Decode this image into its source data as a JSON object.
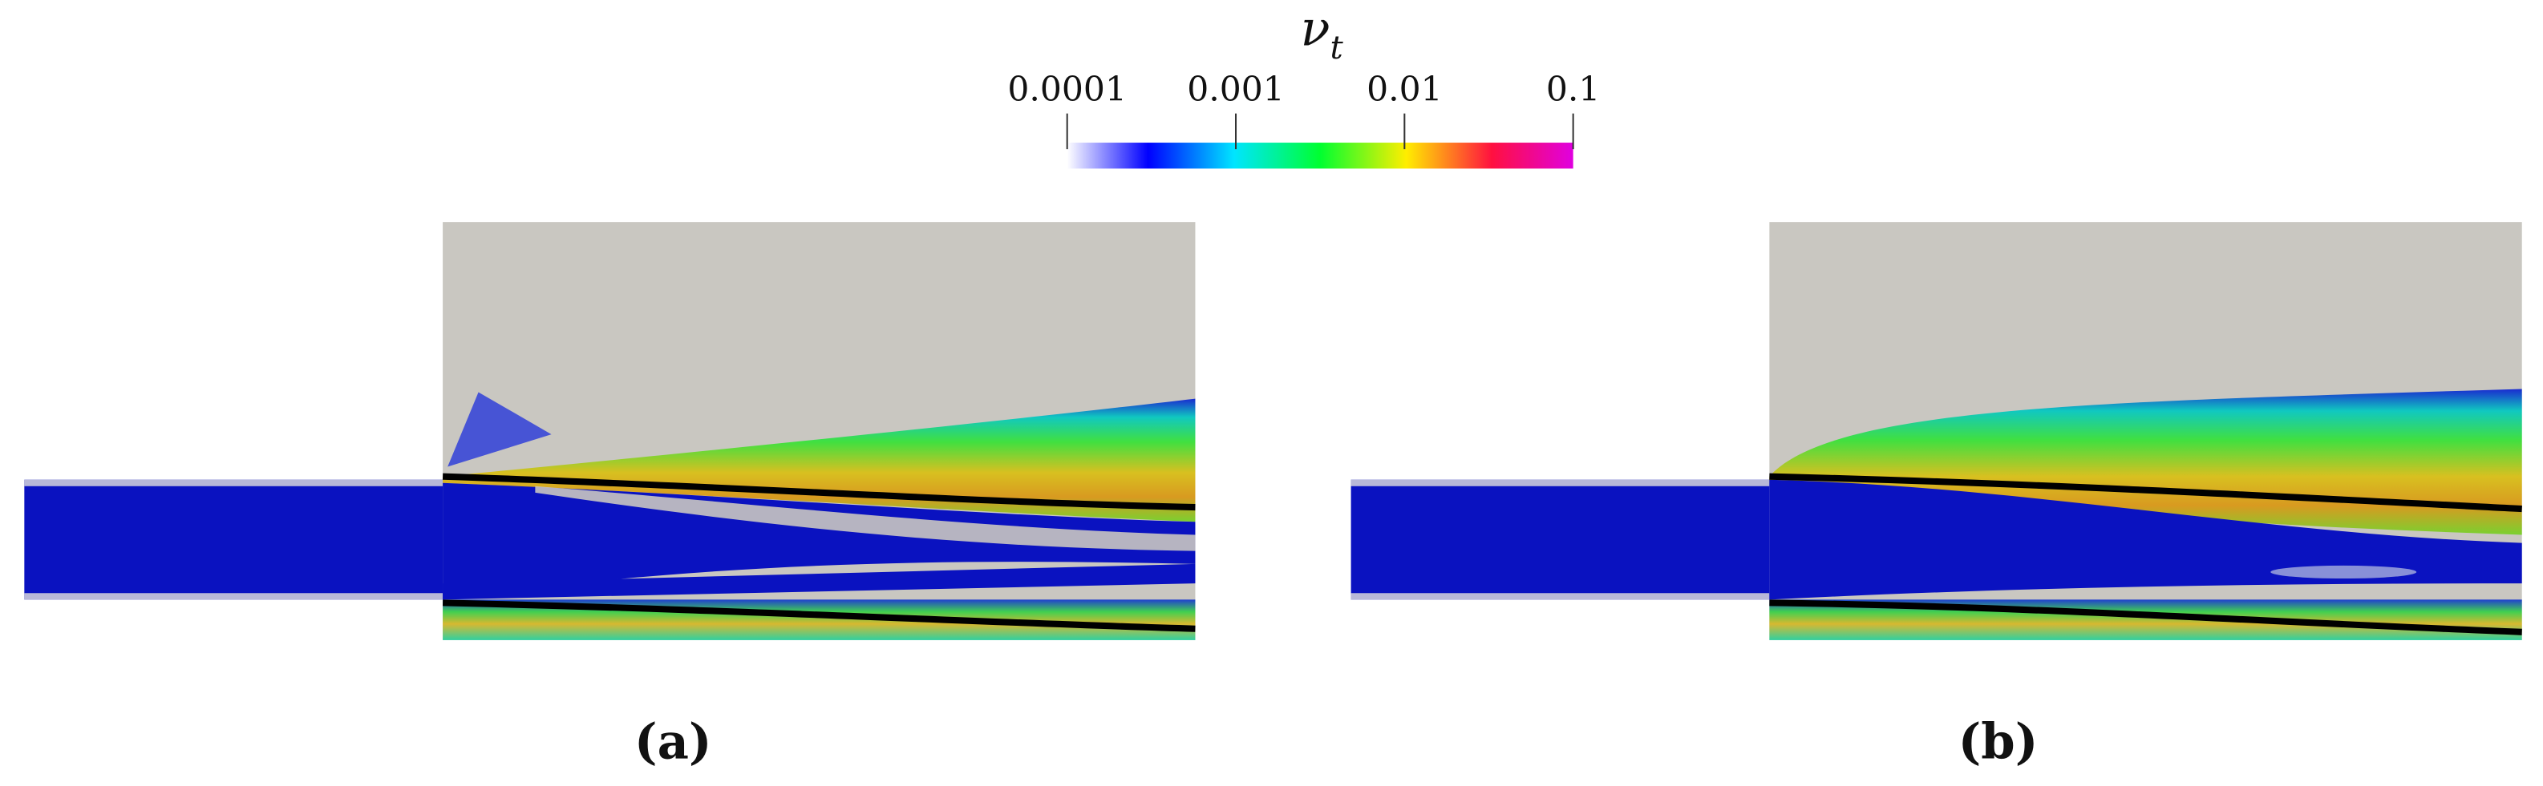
{
  "colorbar": {
    "title": "ν",
    "title_subscript": "t",
    "log": true,
    "lim": [
      0.0001,
      0.1
    ],
    "ticks": [
      0.0001,
      0.001,
      0.01,
      0.1
    ]
  },
  "panels": [
    {
      "label": "(a)"
    },
    {
      "label": "(b)"
    }
  ]
}
